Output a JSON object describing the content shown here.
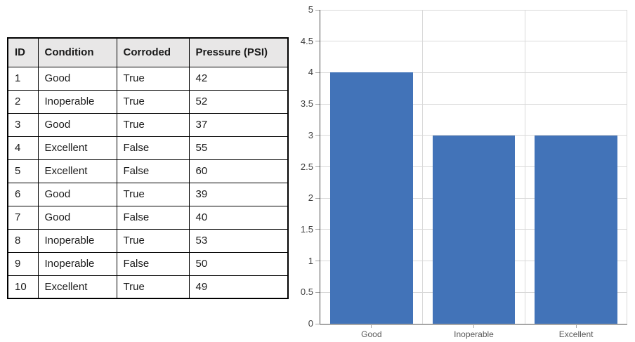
{
  "table": {
    "columns": [
      "ID",
      "Condition",
      "Corroded",
      "Pressure (PSI)"
    ],
    "rows": [
      [
        "1",
        "Good",
        "True",
        "42"
      ],
      [
        "2",
        "Inoperable",
        "True",
        "52"
      ],
      [
        "3",
        "Good",
        "True",
        "37"
      ],
      [
        "4",
        "Excellent",
        "False",
        "55"
      ],
      [
        "5",
        "Excellent",
        "False",
        "60"
      ],
      [
        "6",
        "Good",
        "True",
        "39"
      ],
      [
        "7",
        "Good",
        "False",
        "40"
      ],
      [
        "8",
        "Inoperable",
        "True",
        "53"
      ],
      [
        "9",
        "Inoperable",
        "False",
        "50"
      ],
      [
        "10",
        "Excellent",
        "True",
        "49"
      ]
    ]
  },
  "chart_data": {
    "type": "bar",
    "categories": [
      "Good",
      "Inoperable",
      "Excellent"
    ],
    "values": [
      4,
      3,
      3
    ],
    "title": "",
    "xlabel": "",
    "ylabel": "",
    "ylim": [
      0,
      5
    ],
    "ytick_step": 0.5,
    "ytick_labels": [
      "0",
      "0.5",
      "1",
      "1.5",
      "2",
      "2.5",
      "3",
      "3.5",
      "4",
      "4.5",
      "5"
    ],
    "grid": true,
    "legend": false
  },
  "colors": {
    "bar": "#4273B8",
    "gridline": "#D9D9D9",
    "x_axis_line": "#A6A6A6",
    "y_axis_line": "#474747",
    "tick": "#A6A6A6",
    "y_tick_label": "#404040",
    "x_tick_label": "#595959",
    "table_header_bg": "#E8E7E7",
    "table_border": "#000000"
  }
}
